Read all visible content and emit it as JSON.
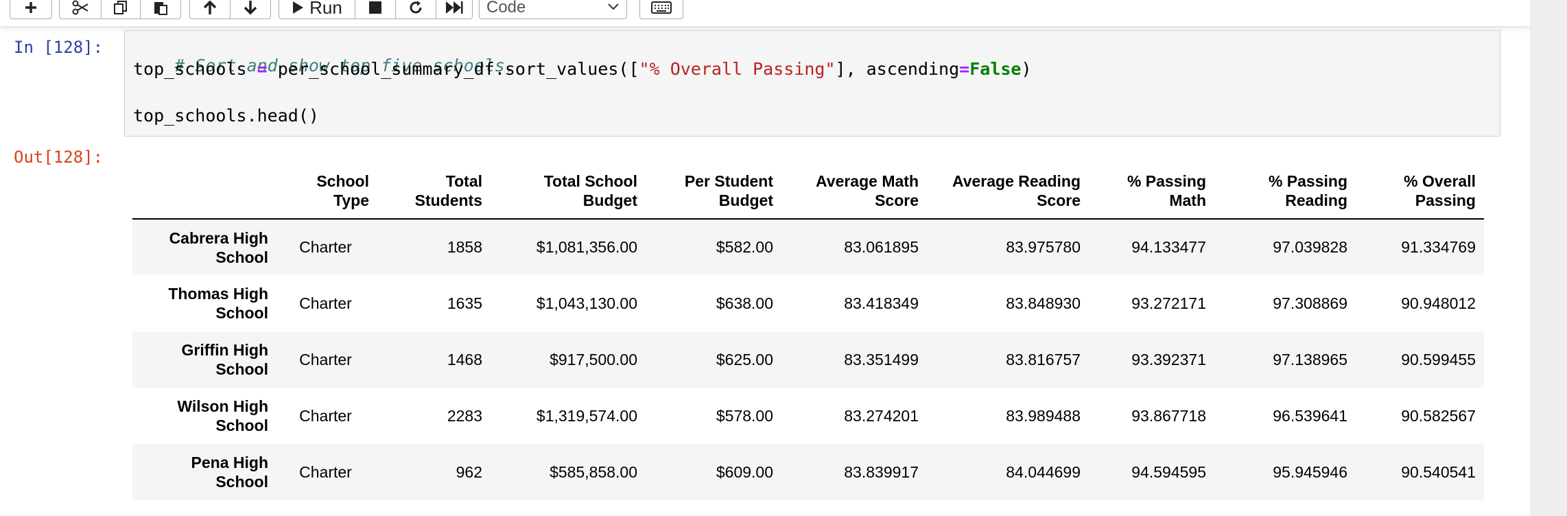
{
  "toolbar": {
    "run_label": "Run",
    "cell_type": "Code"
  },
  "cell": {
    "in_prompt": "In [128]:",
    "out_prompt": "Out[128]:",
    "code_line1_comment": "# Sort and show top five schools.",
    "code_line2": {
      "var": "top_schools ",
      "eq": "=",
      "call": " per_school_summary_df.sort_values([",
      "str": "\"% Overall Passing\"",
      "mid": "], ascending",
      "eq2": "=",
      "kw": "False",
      "end": ")"
    },
    "code_line3": "top_schools.head()"
  },
  "table": {
    "columns": [
      [
        "School",
        "Type"
      ],
      [
        "Total",
        "Students"
      ],
      [
        "Total School",
        "Budget"
      ],
      [
        "Per Student",
        "Budget"
      ],
      [
        "Average Math",
        "Score"
      ],
      [
        "Average Reading",
        "Score"
      ],
      [
        "% Passing",
        "Math"
      ],
      [
        "% Passing",
        "Reading"
      ],
      [
        "% Overall",
        "Passing"
      ]
    ],
    "rows": [
      {
        "index": [
          "Cabrera High",
          "School"
        ],
        "cells": [
          "Charter",
          "1858",
          "$1,081,356.00",
          "$582.00",
          "83.061895",
          "83.975780",
          "94.133477",
          "97.039828",
          "91.334769"
        ]
      },
      {
        "index": [
          "Thomas High",
          "School"
        ],
        "cells": [
          "Charter",
          "1635",
          "$1,043,130.00",
          "$638.00",
          "83.418349",
          "83.848930",
          "93.272171",
          "97.308869",
          "90.948012"
        ]
      },
      {
        "index": [
          "Griffin High",
          "School"
        ],
        "cells": [
          "Charter",
          "1468",
          "$917,500.00",
          "$625.00",
          "83.351499",
          "83.816757",
          "93.392371",
          "97.138965",
          "90.599455"
        ]
      },
      {
        "index": [
          "Wilson High",
          "School"
        ],
        "cells": [
          "Charter",
          "2283",
          "$1,319,574.00",
          "$578.00",
          "83.274201",
          "83.989488",
          "93.867718",
          "96.539641",
          "90.582567"
        ]
      },
      {
        "index": [
          "Pena High",
          "School"
        ],
        "cells": [
          "Charter",
          "962",
          "$585,858.00",
          "$609.00",
          "83.839917",
          "84.044699",
          "94.594595",
          "95.945946",
          "90.540541"
        ]
      }
    ]
  }
}
